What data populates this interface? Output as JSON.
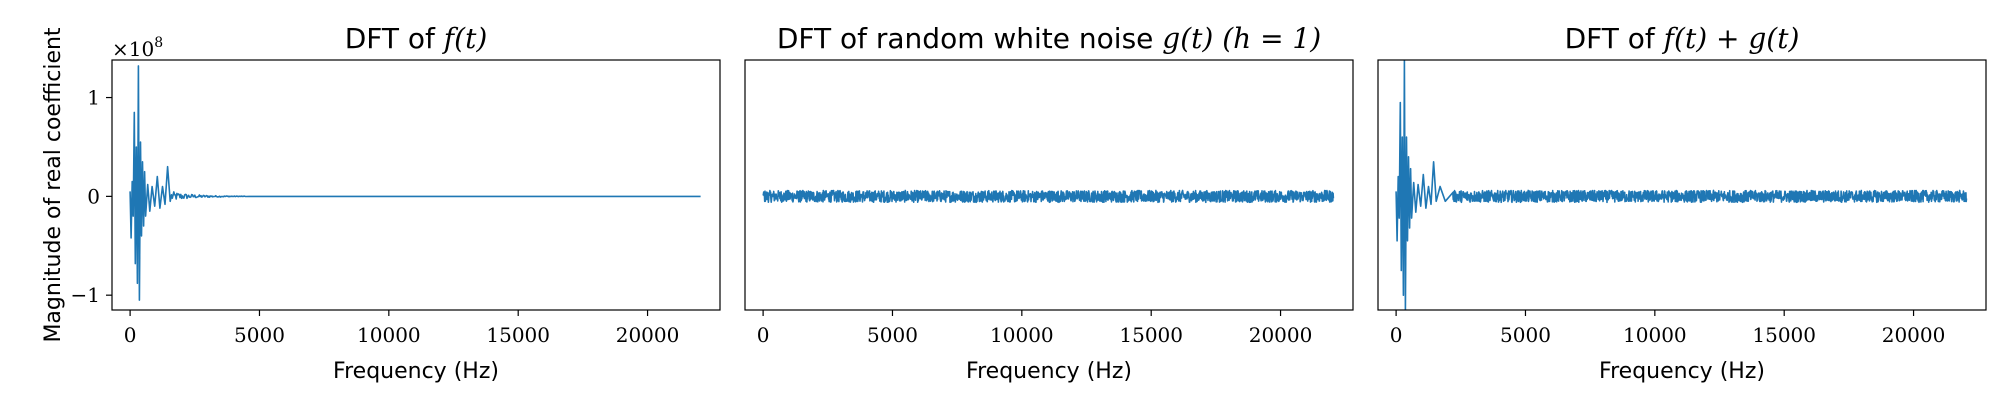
{
  "colors": {
    "series": "#1f77b4"
  },
  "chart_data": [
    {
      "type": "line",
      "title_prefix": "DFT of ",
      "title_math": "f(t)",
      "title_suffix": "",
      "xlabel": "Frequency (Hz)",
      "ylabel": "Magnitude of real coefficient",
      "offset_text_base": "×10",
      "offset_text_exp": "8",
      "xlim": [
        -700,
        22800
      ],
      "ylim": [
        -1.15,
        1.38
      ],
      "xticks": [
        0,
        5000,
        10000,
        15000,
        20000
      ],
      "xtick_labels": [
        "0",
        "5000",
        "10000",
        "15000",
        "20000"
      ],
      "yticks": [
        -1,
        0,
        1
      ],
      "ytick_labels": [
        "−1",
        "0",
        "1"
      ],
      "y_scale_note": "×10^8",
      "series": [
        {
          "kind": "sparse-spikes",
          "x": [
            0,
            40,
            80,
            120,
            160,
            200,
            240,
            280,
            320,
            360,
            400,
            440,
            480,
            520,
            560,
            600,
            680,
            760,
            850,
            950,
            1050,
            1150,
            1250,
            1350,
            1450,
            1550,
            1700,
            1900,
            2200,
            2600,
            3200,
            4000,
            5000,
            22050
          ],
          "y": [
            0.05,
            -0.42,
            0.15,
            -0.2,
            0.85,
            -0.68,
            0.5,
            -0.88,
            1.32,
            -1.05,
            0.55,
            -0.4,
            0.35,
            -0.3,
            0.25,
            -0.2,
            0.12,
            -0.15,
            0.1,
            -0.1,
            0.2,
            -0.12,
            0.1,
            -0.08,
            0.3,
            -0.05,
            0.08,
            -0.04,
            0.03,
            -0.02,
            0.01,
            0.01,
            0.0,
            0.0
          ],
          "noise_amplitude": 0.0
        }
      ]
    },
    {
      "type": "line",
      "title_prefix": "DFT of random white noise ",
      "title_math": "g(t) (h = 1)",
      "title_suffix": "",
      "xlabel": "Frequency (Hz)",
      "ylabel": "",
      "xlim": [
        -700,
        22800
      ],
      "ylim": [
        -1.15,
        1.38
      ],
      "xticks": [
        0,
        5000,
        10000,
        15000,
        20000
      ],
      "xtick_labels": [
        "0",
        "5000",
        "10000",
        "15000",
        "20000"
      ],
      "yticks": [],
      "ytick_labels": [],
      "series": [
        {
          "kind": "band-noise",
          "x_range": [
            0,
            22050
          ],
          "noise_amplitude": 0.06
        }
      ]
    },
    {
      "type": "line",
      "title_prefix": "DFT of ",
      "title_math": "f(t) + g(t)",
      "title_suffix": "",
      "xlabel": "Frequency (Hz)",
      "ylabel": "",
      "xlim": [
        -700,
        22800
      ],
      "ylim": [
        -1.15,
        1.38
      ],
      "xticks": [
        0,
        5000,
        10000,
        15000,
        20000
      ],
      "xtick_labels": [
        "0",
        "5000",
        "10000",
        "15000",
        "20000"
      ],
      "yticks": [],
      "ytick_labels": [],
      "series": [
        {
          "kind": "spikes-plus-noise",
          "x": [
            0,
            40,
            80,
            120,
            160,
            200,
            240,
            280,
            320,
            360,
            400,
            440,
            480,
            520,
            560,
            600,
            680,
            760,
            850,
            950,
            1050,
            1150,
            1250,
            1350,
            1450,
            1550,
            1700,
            1900,
            2200
          ],
          "y": [
            0.05,
            -0.45,
            0.2,
            -0.22,
            0.95,
            -0.75,
            0.6,
            -1.0,
            1.38,
            -1.15,
            0.6,
            -0.45,
            0.4,
            -0.32,
            0.28,
            -0.22,
            0.14,
            -0.16,
            0.12,
            -0.1,
            0.22,
            -0.12,
            0.1,
            -0.08,
            0.35,
            -0.05,
            0.1,
            -0.05,
            0.04
          ],
          "noise_amplitude": 0.06
        }
      ]
    }
  ]
}
